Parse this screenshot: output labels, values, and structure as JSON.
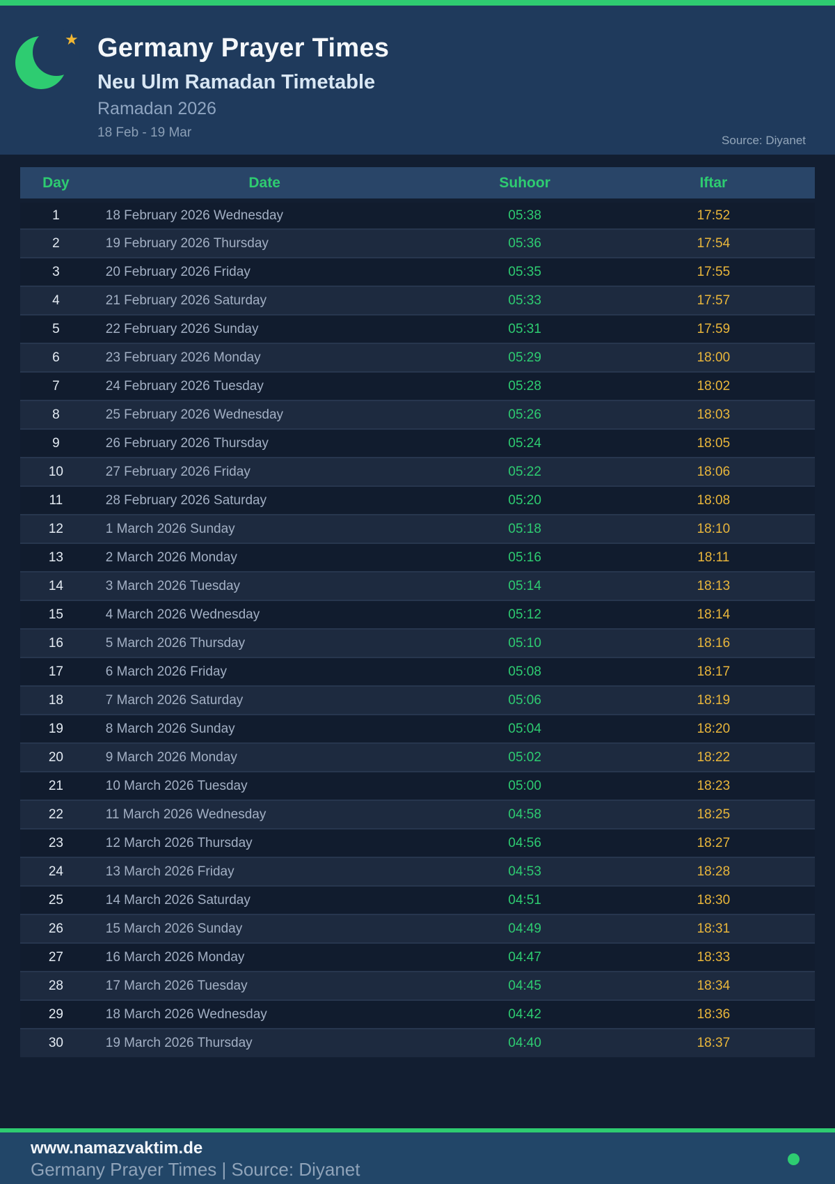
{
  "colors": {
    "accent_green": "#2ecc71",
    "accent_gold": "#e9b63b",
    "header_bg": "#1f3a5c",
    "page_bg": "#121e31",
    "thead_bg": "#294568",
    "row_dark": "#111c2e",
    "row_light": "#1d2a3f",
    "row_border": "#27364e",
    "footer_bg": "#224668"
  },
  "icons": {
    "crescent_moon": "crescent-moon-icon",
    "star": "★",
    "status_dot": "css-circle"
  },
  "header": {
    "title": "Germany Prayer Times",
    "subtitle": "Neu Ulm Ramadan Timetable",
    "season": "Ramadan 2026",
    "date_range": "18 Feb - 19 Mar",
    "source_label": "Source: Diyanet"
  },
  "table": {
    "columns": [
      "Day",
      "Date",
      "Suhoor",
      "Iftar"
    ],
    "rows": [
      {
        "day": "1",
        "date": "18 February 2026 Wednesday",
        "suhoor": "05:38",
        "iftar": "17:52"
      },
      {
        "day": "2",
        "date": "19 February 2026 Thursday",
        "suhoor": "05:36",
        "iftar": "17:54"
      },
      {
        "day": "3",
        "date": "20 February 2026 Friday",
        "suhoor": "05:35",
        "iftar": "17:55"
      },
      {
        "day": "4",
        "date": "21 February 2026 Saturday",
        "suhoor": "05:33",
        "iftar": "17:57"
      },
      {
        "day": "5",
        "date": "22 February 2026 Sunday",
        "suhoor": "05:31",
        "iftar": "17:59"
      },
      {
        "day": "6",
        "date": "23 February 2026 Monday",
        "suhoor": "05:29",
        "iftar": "18:00"
      },
      {
        "day": "7",
        "date": "24 February 2026 Tuesday",
        "suhoor": "05:28",
        "iftar": "18:02"
      },
      {
        "day": "8",
        "date": "25 February 2026 Wednesday",
        "suhoor": "05:26",
        "iftar": "18:03"
      },
      {
        "day": "9",
        "date": "26 February 2026 Thursday",
        "suhoor": "05:24",
        "iftar": "18:05"
      },
      {
        "day": "10",
        "date": "27 February 2026 Friday",
        "suhoor": "05:22",
        "iftar": "18:06"
      },
      {
        "day": "11",
        "date": "28 February 2026 Saturday",
        "suhoor": "05:20",
        "iftar": "18:08"
      },
      {
        "day": "12",
        "date": "1 March 2026 Sunday",
        "suhoor": "05:18",
        "iftar": "18:10"
      },
      {
        "day": "13",
        "date": "2 March 2026 Monday",
        "suhoor": "05:16",
        "iftar": "18:11"
      },
      {
        "day": "14",
        "date": "3 March 2026 Tuesday",
        "suhoor": "05:14",
        "iftar": "18:13"
      },
      {
        "day": "15",
        "date": "4 March 2026 Wednesday",
        "suhoor": "05:12",
        "iftar": "18:14"
      },
      {
        "day": "16",
        "date": "5 March 2026 Thursday",
        "suhoor": "05:10",
        "iftar": "18:16"
      },
      {
        "day": "17",
        "date": "6 March 2026 Friday",
        "suhoor": "05:08",
        "iftar": "18:17"
      },
      {
        "day": "18",
        "date": "7 March 2026 Saturday",
        "suhoor": "05:06",
        "iftar": "18:19"
      },
      {
        "day": "19",
        "date": "8 March 2026 Sunday",
        "suhoor": "05:04",
        "iftar": "18:20"
      },
      {
        "day": "20",
        "date": "9 March 2026 Monday",
        "suhoor": "05:02",
        "iftar": "18:22"
      },
      {
        "day": "21",
        "date": "10 March 2026 Tuesday",
        "suhoor": "05:00",
        "iftar": "18:23"
      },
      {
        "day": "22",
        "date": "11 March 2026 Wednesday",
        "suhoor": "04:58",
        "iftar": "18:25"
      },
      {
        "day": "23",
        "date": "12 March 2026 Thursday",
        "suhoor": "04:56",
        "iftar": "18:27"
      },
      {
        "day": "24",
        "date": "13 March 2026 Friday",
        "suhoor": "04:53",
        "iftar": "18:28"
      },
      {
        "day": "25",
        "date": "14 March 2026 Saturday",
        "suhoor": "04:51",
        "iftar": "18:30"
      },
      {
        "day": "26",
        "date": "15 March 2026 Sunday",
        "suhoor": "04:49",
        "iftar": "18:31"
      },
      {
        "day": "27",
        "date": "16 March 2026 Monday",
        "suhoor": "04:47",
        "iftar": "18:33"
      },
      {
        "day": "28",
        "date": "17 March 2026 Tuesday",
        "suhoor": "04:45",
        "iftar": "18:34"
      },
      {
        "day": "29",
        "date": "18 March 2026 Wednesday",
        "suhoor": "04:42",
        "iftar": "18:36"
      },
      {
        "day": "30",
        "date": "19 March 2026 Thursday",
        "suhoor": "04:40",
        "iftar": "18:37"
      }
    ]
  },
  "footer": {
    "website": "www.namazvaktim.de",
    "tagline": "Germany Prayer Times | Source: Diyanet"
  }
}
